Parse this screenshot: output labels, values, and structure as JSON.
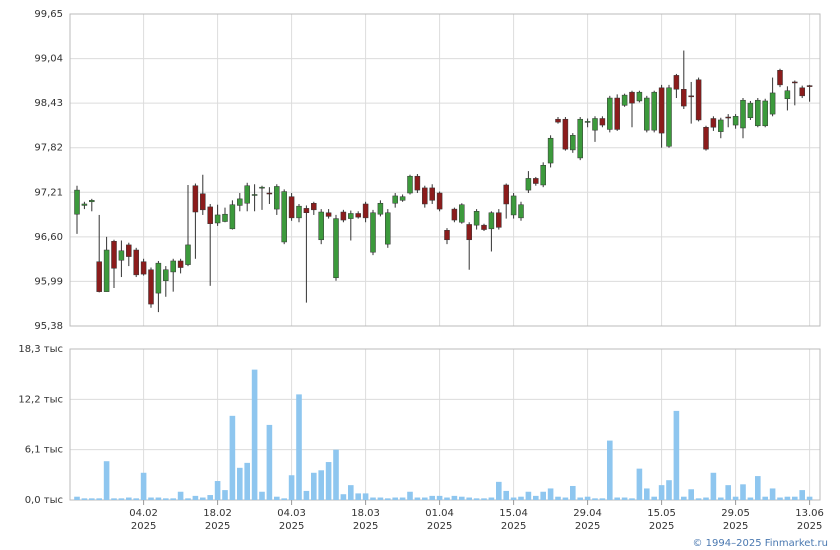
{
  "chart_data": [
    {
      "type": "candlestick",
      "up_color": "#3c9a3c",
      "down_color": "#8b1c1c",
      "grid": true,
      "ylim": [
        95.38,
        99.65
      ],
      "yticks": [
        {
          "value": 95.38,
          "label": "95,38"
        },
        {
          "value": 95.99,
          "label": "95,99"
        },
        {
          "value": 96.6,
          "label": "96,60"
        },
        {
          "value": 97.21,
          "label": "97,21"
        },
        {
          "value": 97.82,
          "label": "97,82"
        },
        {
          "value": 98.43,
          "label": "98,43"
        },
        {
          "value": 99.04,
          "label": "99,04"
        },
        {
          "value": 99.65,
          "label": "99,65"
        }
      ],
      "open": [
        96.91,
        97.03,
        97.08,
        96.26,
        95.85,
        96.54,
        96.28,
        96.49,
        96.42,
        96.26,
        96.15,
        95.83,
        96.0,
        96.12,
        96.27,
        96.22,
        97.3,
        97.19,
        97.01,
        96.79,
        96.81,
        96.71,
        97.03,
        97.06,
        97.17,
        97.27,
        97.2,
        96.98,
        96.53,
        97.15,
        96.86,
        96.99,
        97.06,
        96.56,
        96.93,
        96.04,
        96.94,
        96.85,
        96.92,
        97.05,
        96.39,
        96.91,
        96.5,
        97.06,
        97.1,
        97.2,
        97.43,
        97.27,
        97.27,
        97.2,
        96.69,
        96.98,
        96.8,
        96.77,
        96.76,
        96.76,
        96.71,
        96.93,
        97.31,
        96.9,
        96.86,
        97.24,
        97.4,
        97.31,
        97.61,
        98.21,
        98.21,
        97.79,
        97.68,
        98.17,
        98.06,
        98.22,
        98.07,
        98.5,
        98.4,
        98.58,
        98.46,
        98.06,
        98.06,
        98.64,
        97.84,
        98.81,
        98.62,
        98.53,
        98.75,
        98.1,
        98.22,
        98.04,
        98.24,
        98.13,
        98.09,
        98.23,
        98.12,
        98.12,
        98.28,
        98.88,
        98.49,
        98.72,
        98.64,
        98.67
      ],
      "high": [
        97.3,
        97.08,
        97.12,
        96.9,
        96.6,
        96.56,
        96.55,
        96.52,
        96.45,
        96.3,
        96.18,
        96.27,
        96.2,
        96.3,
        96.3,
        97.31,
        97.33,
        97.45,
        97.05,
        97.04,
        97.0,
        97.1,
        97.2,
        97.34,
        97.32,
        97.3,
        97.28,
        97.32,
        97.25,
        97.2,
        97.05,
        97.03,
        97.08,
        96.98,
        96.98,
        96.9,
        96.97,
        96.96,
        96.95,
        97.08,
        96.97,
        97.1,
        96.98,
        97.2,
        97.18,
        97.45,
        97.46,
        97.3,
        97.32,
        97.22,
        96.72,
        97.0,
        97.06,
        96.8,
        96.98,
        96.78,
        96.95,
        96.98,
        97.33,
        97.2,
        97.08,
        97.5,
        97.42,
        97.62,
        97.99,
        98.24,
        98.24,
        98.02,
        98.24,
        98.22,
        98.25,
        98.25,
        98.53,
        98.55,
        98.56,
        98.6,
        98.6,
        98.53,
        98.6,
        98.68,
        98.68,
        98.83,
        99.15,
        98.72,
        98.78,
        98.12,
        98.25,
        98.23,
        98.28,
        98.28,
        98.5,
        98.46,
        98.5,
        98.49,
        98.78,
        98.9,
        98.66,
        98.74,
        98.67,
        98.68
      ],
      "low": [
        96.64,
        96.98,
        96.95,
        95.84,
        95.85,
        95.9,
        96.05,
        96.2,
        96.05,
        96.07,
        95.63,
        95.57,
        95.78,
        95.85,
        96.1,
        96.2,
        96.3,
        96.9,
        95.93,
        96.75,
        96.8,
        96.7,
        96.95,
        96.95,
        96.95,
        96.97,
        97.05,
        96.9,
        96.5,
        96.82,
        96.8,
        95.7,
        96.9,
        96.5,
        96.85,
        96.0,
        96.8,
        96.55,
        96.85,
        96.8,
        96.35,
        96.88,
        96.45,
        97.0,
        97.08,
        97.18,
        97.2,
        97.0,
        97.05,
        96.95,
        96.5,
        96.8,
        96.78,
        96.15,
        96.7,
        96.68,
        96.4,
        96.7,
        96.85,
        96.85,
        96.82,
        97.2,
        97.3,
        97.28,
        97.55,
        98.15,
        97.78,
        97.75,
        97.65,
        98.1,
        97.9,
        98.1,
        98.03,
        98.05,
        98.38,
        98.1,
        98.44,
        98.03,
        98.03,
        97.82,
        97.82,
        98.5,
        98.35,
        98.15,
        98.18,
        97.78,
        98.05,
        97.95,
        98.1,
        98.08,
        97.95,
        98.2,
        98.1,
        98.1,
        98.25,
        98.65,
        98.33,
        98.4,
        98.5,
        98.45
      ],
      "close": [
        97.24,
        97.05,
        97.1,
        95.85,
        96.42,
        96.17,
        96.41,
        96.33,
        96.08,
        96.09,
        95.68,
        96.24,
        96.15,
        96.27,
        96.18,
        96.49,
        96.94,
        96.97,
        96.78,
        96.9,
        96.91,
        97.04,
        97.12,
        97.3,
        97.18,
        97.28,
        97.19,
        97.29,
        97.22,
        96.86,
        97.02,
        96.93,
        96.97,
        96.94,
        96.88,
        96.85,
        96.83,
        96.92,
        96.87,
        96.86,
        96.93,
        97.06,
        96.93,
        97.16,
        97.15,
        97.43,
        97.24,
        97.05,
        97.1,
        96.98,
        96.56,
        96.83,
        97.04,
        96.56,
        96.95,
        96.7,
        96.93,
        96.73,
        97.05,
        97.16,
        97.04,
        97.4,
        97.33,
        97.58,
        97.95,
        98.17,
        97.8,
        97.99,
        98.21,
        98.18,
        98.22,
        98.13,
        98.5,
        98.07,
        98.54,
        98.43,
        98.58,
        98.5,
        98.58,
        98.02,
        98.64,
        98.62,
        98.39,
        98.52,
        98.2,
        97.8,
        98.1,
        98.2,
        98.23,
        98.25,
        98.47,
        98.43,
        98.47,
        98.46,
        98.57,
        98.68,
        98.6,
        98.71,
        98.53,
        98.66
      ]
    },
    {
      "type": "bar",
      "color": "#8ec6ef",
      "grid": true,
      "ylim": [
        0,
        18.3
      ],
      "yticks": [
        {
          "value": 0,
          "label": "0,0 тыс"
        },
        {
          "value": 6.1,
          "label": "6,1 тыс"
        },
        {
          "value": 12.2,
          "label": "12,2 тыс"
        },
        {
          "value": 18.3,
          "label": "18,3 тыс"
        }
      ],
      "x_sublabel": "2025",
      "categories": [
        null,
        null,
        null,
        null,
        null,
        null,
        null,
        null,
        null,
        "04.02",
        null,
        null,
        null,
        null,
        null,
        null,
        null,
        null,
        null,
        "18.02",
        null,
        null,
        null,
        null,
        null,
        null,
        null,
        null,
        null,
        "04.03",
        null,
        null,
        null,
        null,
        null,
        null,
        null,
        null,
        null,
        "18.03",
        null,
        null,
        null,
        null,
        null,
        null,
        null,
        null,
        null,
        "01.04",
        null,
        null,
        null,
        null,
        null,
        null,
        null,
        null,
        null,
        "15.04",
        null,
        null,
        null,
        null,
        null,
        null,
        null,
        null,
        null,
        "29.04",
        null,
        null,
        null,
        null,
        null,
        null,
        null,
        null,
        null,
        "15.05",
        null,
        null,
        null,
        null,
        null,
        null,
        null,
        null,
        null,
        "29.05",
        null,
        null,
        null,
        null,
        null,
        null,
        null,
        null,
        null,
        "13.06"
      ],
      "values": [
        0.4,
        0.2,
        0.2,
        0.2,
        4.7,
        0.2,
        0.2,
        0.3,
        0.2,
        3.3,
        0.3,
        0.3,
        0.2,
        0.2,
        1.0,
        0.2,
        0.5,
        0.3,
        0.6,
        2.3,
        1.2,
        10.2,
        3.9,
        4.5,
        15.8,
        1.0,
        9.1,
        0.4,
        0.2,
        3.0,
        12.8,
        1.1,
        3.3,
        3.6,
        4.6,
        6.1,
        0.7,
        1.8,
        0.8,
        0.8,
        0.3,
        0.3,
        0.2,
        0.3,
        0.3,
        1.0,
        0.3,
        0.3,
        0.5,
        0.5,
        0.3,
        0.5,
        0.4,
        0.3,
        0.2,
        0.2,
        0.3,
        2.2,
        1.1,
        0.3,
        0.4,
        1.0,
        0.5,
        1.0,
        1.4,
        0.4,
        0.3,
        1.7,
        0.3,
        0.4,
        0.2,
        0.2,
        7.2,
        0.3,
        0.3,
        0.2,
        3.8,
        1.4,
        0.4,
        1.8,
        2.4,
        10.8,
        0.4,
        1.3,
        0.2,
        0.3,
        3.3,
        0.3,
        1.8,
        0.4,
        1.9,
        0.3,
        2.9,
        0.4,
        1.4,
        0.3,
        0.4,
        0.4,
        1.2,
        0.4
      ]
    }
  ],
  "footer": "© 1994–2025 Finmarket.ru"
}
